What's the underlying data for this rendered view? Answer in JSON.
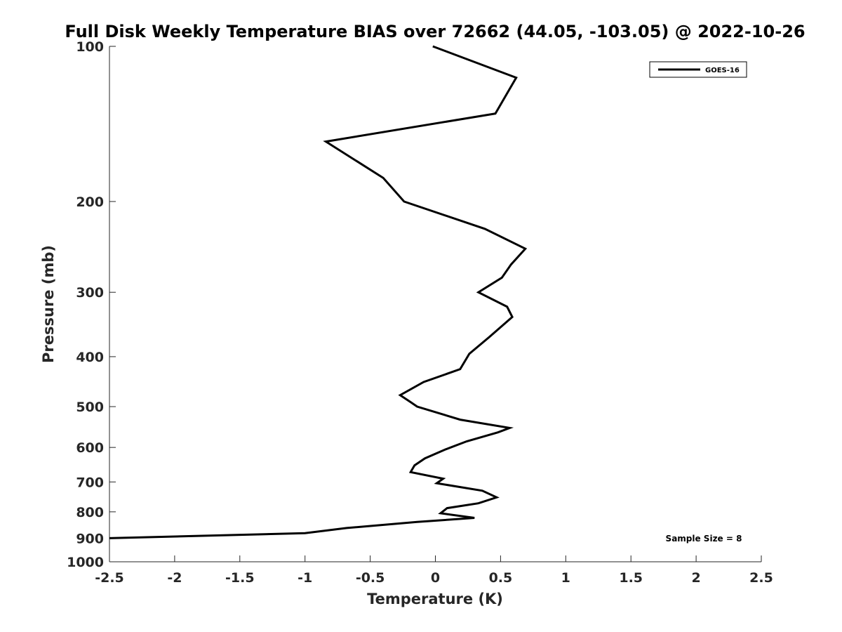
{
  "chart_data": {
    "type": "line",
    "title": "Full Disk Weekly Temperature BIAS over 72662 (44.05, -103.05) @ 2022-10-26",
    "xlabel": "Temperature (K)",
    "ylabel": "Pressure (mb)",
    "xlim": [
      -2.5,
      2.5
    ],
    "ylim": [
      1000,
      100
    ],
    "yscale": "log",
    "y_reversed": true,
    "xticks": [
      -2.5,
      -2,
      -1.5,
      -1,
      -0.5,
      0,
      0.5,
      1,
      1.5,
      2,
      2.5
    ],
    "xtick_labels": [
      "-2.5",
      "-2",
      "-1.5",
      "-1",
      "-0.5",
      "0",
      "0.5",
      "1",
      "1.5",
      "2",
      "2.5"
    ],
    "yticks": [
      100,
      200,
      300,
      400,
      500,
      600,
      700,
      800,
      900,
      1000
    ],
    "ytick_labels": [
      "100",
      "200",
      "300",
      "400",
      "500",
      "600",
      "700",
      "800",
      "900",
      "1000"
    ],
    "grid": false,
    "legend_position": "top-right",
    "series": [
      {
        "name": "GOES-16",
        "color": "#000000",
        "x": [
          -0.02,
          0.62,
          0.46,
          -0.84,
          -0.4,
          -0.24,
          0.38,
          0.69,
          0.58,
          0.51,
          0.33,
          0.55,
          0.59,
          0.41,
          0.26,
          0.19,
          -0.09,
          -0.27,
          -0.19,
          -0.14,
          0.19,
          0.57,
          0.48,
          0.24,
          0.08,
          -0.08,
          -0.16,
          -0.19,
          0.06,
          0.01,
          0.36,
          0.47,
          0.33,
          0.09,
          0.04,
          0.3,
          -0.14,
          -0.68,
          -1.0,
          -2.5
        ],
        "y": [
          100,
          115,
          135,
          153,
          180,
          200,
          226,
          247,
          265,
          281,
          300,
          320,
          335,
          367,
          395,
          423,
          448,
          475,
          490,
          500,
          530,
          550,
          561,
          584,
          605,
          630,
          650,
          670,
          690,
          704,
          728,
          750,
          770,
          787,
          805,
          822,
          837,
          860,
          880,
          900
        ]
      }
    ],
    "annotations": [
      "Sample Size = 8"
    ]
  }
}
